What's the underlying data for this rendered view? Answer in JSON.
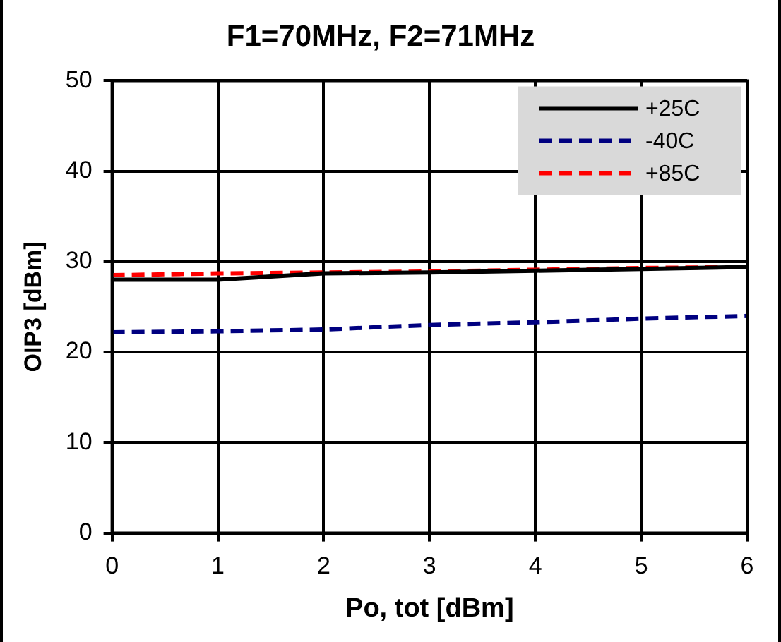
{
  "chart_data": {
    "type": "line",
    "title": "F1=70MHz, F2=71MHz",
    "xlabel": "Po, tot [dBm]",
    "ylabel": "OIP3 [dBm]",
    "x": [
      0,
      1,
      2,
      3,
      4,
      5,
      6
    ],
    "series": [
      {
        "name": "+25C",
        "color": "#000000",
        "line_style": "solid",
        "values": [
          28.0,
          28.0,
          28.7,
          28.8,
          29.0,
          29.2,
          29.4
        ]
      },
      {
        "name": "-40C",
        "color": "#000080",
        "line_style": "dashed",
        "values": [
          22.2,
          22.3,
          22.5,
          23.0,
          23.3,
          23.7,
          24.0
        ]
      },
      {
        "name": "+85C",
        "color": "#ff0000",
        "line_style": "dashed",
        "values": [
          28.5,
          28.7,
          28.8,
          28.9,
          29.1,
          29.3,
          29.4
        ]
      }
    ],
    "xlim": [
      0,
      6
    ],
    "xticks": [
      0,
      1,
      2,
      3,
      4,
      5,
      6
    ],
    "ylim": [
      0,
      50
    ],
    "yticks": [
      0,
      10,
      20,
      30,
      40,
      50
    ],
    "grid": true,
    "legend": "top right",
    "marker": "none"
  }
}
